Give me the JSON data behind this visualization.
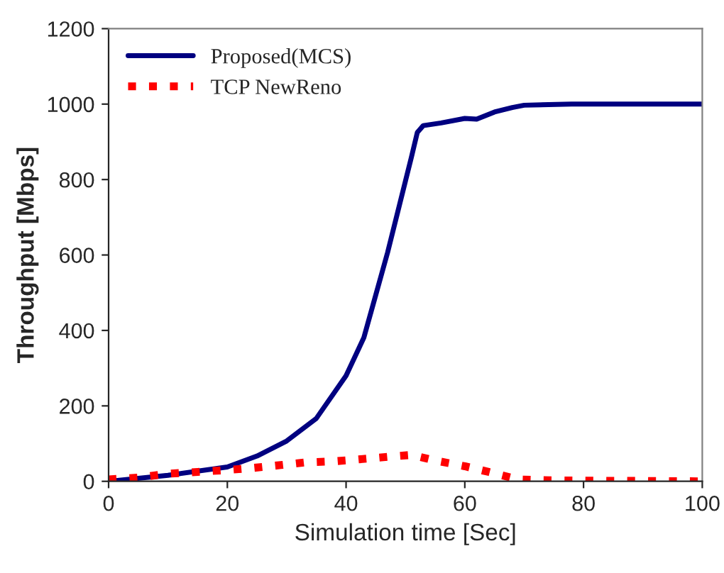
{
  "chart_data": {
    "type": "line",
    "xlabel": "Simulation time [Sec]",
    "ylabel": "Throughput [Mbps]",
    "xlim": [
      0,
      100
    ],
    "xticks": [
      0,
      20,
      40,
      60,
      80,
      100
    ],
    "ylim": [
      0,
      1200
    ],
    "yticks": [
      0,
      200,
      400,
      600,
      800,
      1000,
      1200
    ],
    "grid": false,
    "legend": "top left",
    "series": [
      {
        "name": "Proposed(MCS)",
        "color": "#000080",
        "line_style": "solid",
        "x": [
          0,
          10,
          20,
          25,
          30,
          35,
          40,
          43,
          45,
          47,
          49,
          50,
          51,
          52,
          53,
          56,
          60,
          62,
          65,
          68,
          70,
          78,
          100
        ],
        "values": [
          0,
          16,
          38,
          67,
          107,
          167,
          280,
          381,
          494,
          607,
          733,
          796,
          859,
          925,
          943,
          950,
          962,
          960,
          979,
          991,
          997,
          1000,
          1000
        ]
      },
      {
        "name": "TCP NewReno",
        "color": "#ff0000",
        "line_style": "dotted",
        "x": [
          0,
          5,
          10,
          15,
          20,
          24,
          29,
          33,
          38,
          42,
          47,
          51,
          55,
          60,
          64,
          69,
          73,
          78,
          100
        ],
        "values": [
          5,
          10,
          20,
          25,
          30,
          35,
          43,
          50,
          53,
          58,
          65,
          70,
          55,
          40,
          25,
          5,
          3,
          2,
          0
        ]
      }
    ]
  }
}
